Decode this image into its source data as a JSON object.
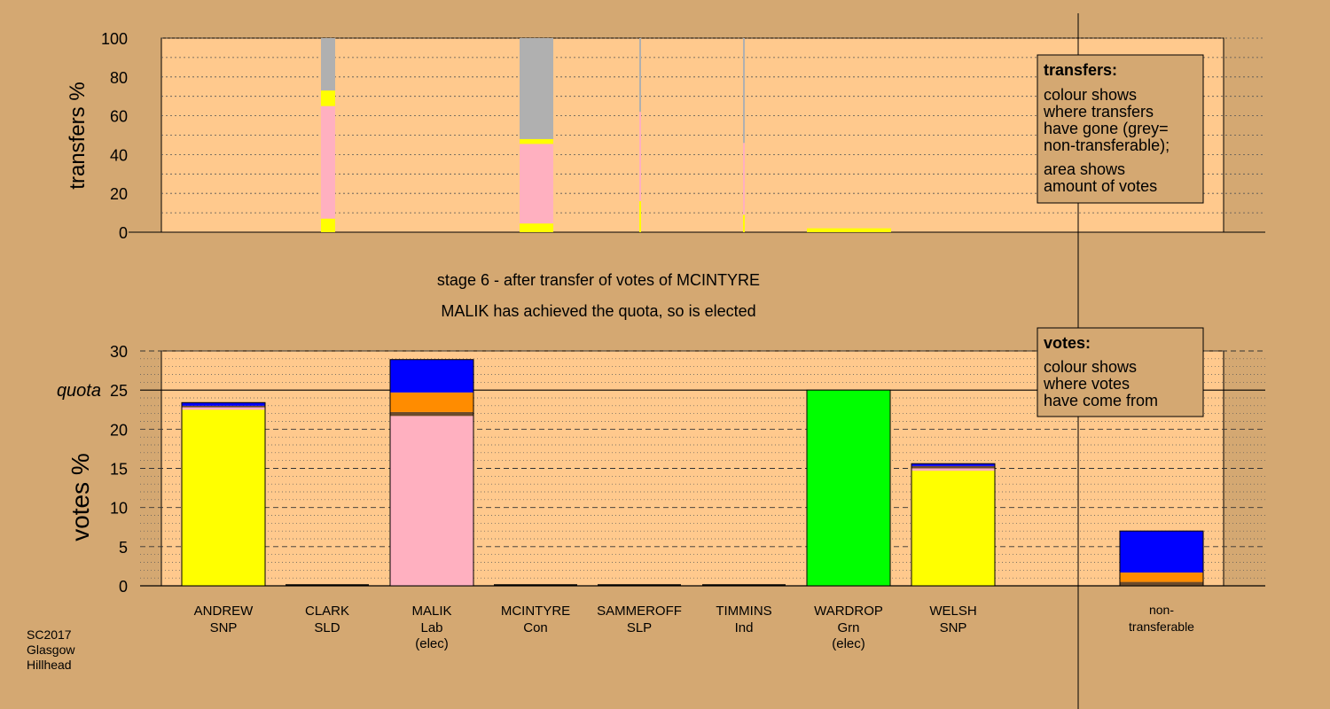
{
  "footer": {
    "lines": [
      "SC2017",
      "Glasgow",
      "Hillhead"
    ]
  },
  "stage": {
    "line1": "stage 6 - after transfer of votes of MCINTYRE",
    "line2": "MALIK has achieved the quota, so is elected"
  },
  "legends": {
    "transfers": {
      "title": "transfers:",
      "lines": [
        "colour shows",
        "where transfers",
        "have gone (grey=",
        "non-transferable);",
        "area shows",
        "amount of votes"
      ]
    },
    "votes": {
      "title": "votes:",
      "lines": [
        "colour shows",
        "where votes",
        "have come from"
      ]
    }
  },
  "colors": {
    "background": "#d4a872",
    "plot_bg": "#ffc98d",
    "snp": "#ffff00",
    "lab": "#ffb0c0",
    "lib": "#ff8c00",
    "con": "#0000ff",
    "grn": "#00ff00",
    "nontransferable": "#b0b0b0",
    "other": "#6b4a2a"
  },
  "chart_data": [
    {
      "type": "bar",
      "ylabel": "transfers %",
      "ylim": [
        0,
        100
      ],
      "yticks": [
        0,
        20,
        40,
        60,
        80,
        100
      ],
      "grid": true,
      "bars": [
        {
          "candidate": "CLARK",
          "segments": [
            [
              0,
              7,
              "snp"
            ],
            [
              7,
              65,
              "lab"
            ],
            [
              65,
              73,
              "snp"
            ],
            [
              73,
              100,
              "nontransferable"
            ]
          ]
        },
        {
          "candidate": "MCINTYRE",
          "segments": [
            [
              0,
              4.5,
              "snp"
            ],
            [
              4.5,
              45.5,
              "lab"
            ],
            [
              45.5,
              48,
              "snp"
            ],
            [
              48,
              100,
              "nontransferable"
            ]
          ]
        },
        {
          "candidate": "SAMMEROFF",
          "segments": [
            [
              0,
              16,
              "snp"
            ],
            [
              16,
              62,
              "lab"
            ],
            [
              62,
              100,
              "nontransferable"
            ]
          ]
        },
        {
          "candidate": "TIMMINS",
          "segments": [
            [
              0,
              9,
              "snp"
            ],
            [
              9,
              46,
              "lab"
            ],
            [
              46,
              100,
              "nontransferable"
            ]
          ]
        },
        {
          "candidate": "WARDROP",
          "segments": [
            [
              0,
              2,
              "snp"
            ]
          ]
        }
      ]
    },
    {
      "type": "bar",
      "ylabel": "votes %",
      "ylim": [
        0,
        30
      ],
      "yticks": [
        0,
        5,
        10,
        15,
        20,
        25,
        30
      ],
      "quota": 25,
      "quota_label": "quota",
      "grid": true,
      "bars": [
        {
          "name": "ANDREW",
          "party": "SNP",
          "elected": "",
          "segments": [
            [
              0,
              22.5,
              "snp"
            ],
            [
              22.5,
              22.8,
              "lab"
            ],
            [
              22.8,
              23.0,
              "other"
            ],
            [
              23.0,
              23.4,
              "con"
            ]
          ]
        },
        {
          "name": "CLARK",
          "party": "SLD",
          "elected": "",
          "segments": []
        },
        {
          "name": "MALIK",
          "party": "Lab",
          "elected": "(elec)",
          "segments": [
            [
              0,
              21.7,
              "lab"
            ],
            [
              21.7,
              22.2,
              "other"
            ],
            [
              22.2,
              24.7,
              "lib"
            ],
            [
              24.7,
              28.9,
              "con"
            ]
          ]
        },
        {
          "name": "MCINTYRE",
          "party": "Con",
          "elected": "",
          "segments": []
        },
        {
          "name": "SAMMEROFF",
          "party": "SLP",
          "elected": "",
          "segments": []
        },
        {
          "name": "TIMMINS",
          "party": "Ind",
          "elected": "",
          "segments": []
        },
        {
          "name": "WARDROP",
          "party": "Grn",
          "elected": "(elec)",
          "segments": [
            [
              0,
              25,
              "grn"
            ]
          ]
        },
        {
          "name": "WELSH",
          "party": "SNP",
          "elected": "",
          "segments": [
            [
              0,
              14.7,
              "snp"
            ],
            [
              14.7,
              15.0,
              "lab"
            ],
            [
              15.0,
              15.3,
              "other"
            ],
            [
              15.3,
              15.6,
              "con"
            ]
          ]
        },
        {
          "name": "non-",
          "party": "transferable",
          "elected": "",
          "segments": [
            [
              0,
              0.5,
              "other"
            ],
            [
              0.5,
              1.7,
              "lib"
            ],
            [
              1.7,
              7.0,
              "con"
            ]
          ]
        }
      ]
    }
  ]
}
